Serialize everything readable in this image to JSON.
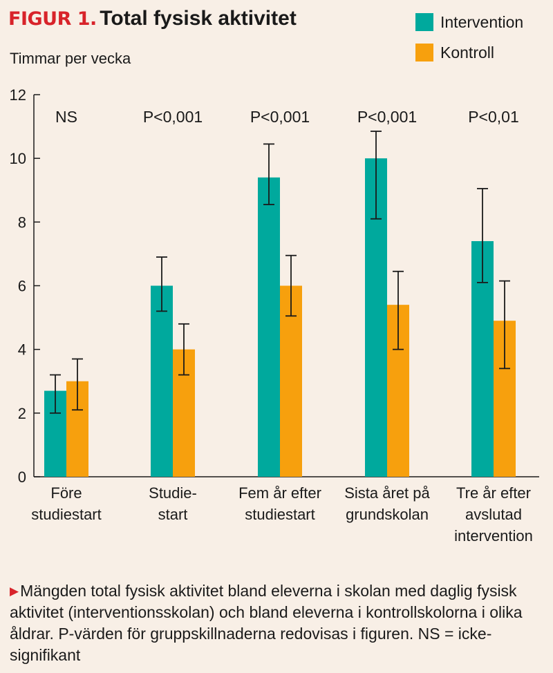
{
  "figure": {
    "label": "FIGUR 1.",
    "title": "Total fysisk aktivitet"
  },
  "caption": "Mängden total fysisk aktivitet bland eleverna i skolan med daglig fysisk aktivitet (interventionsskolan) och bland eleverna i kontrollskolorna i olika åldrar. P-värden för gruppskillnaderna redovisas i figuren. NS = icke-signifikant",
  "chart_data": {
    "type": "bar",
    "title": "Total fysisk aktivitet",
    "ylabel": "Timmar per vecka",
    "xlabel": "",
    "ylim": [
      0,
      12
    ],
    "yticks": [
      0,
      2,
      4,
      6,
      8,
      10,
      12
    ],
    "grid": false,
    "legend_position": "top-right",
    "categories": [
      [
        "Före",
        "studiestart"
      ],
      [
        "Studie-",
        "start"
      ],
      [
        "Fem år efter",
        "studiestart"
      ],
      [
        "Sista året på",
        "grundskolan"
      ],
      [
        "Tre år efter",
        "avslutad",
        "intervention"
      ]
    ],
    "p_values": [
      "NS",
      "P<0,001",
      "P<0,001",
      "P<0,001",
      "P<0,01"
    ],
    "series": [
      {
        "name": "Intervention",
        "color": "#00a99d",
        "values": [
          2.7,
          6.0,
          9.4,
          10.0,
          7.4
        ],
        "error_low": [
          2.0,
          5.2,
          8.55,
          8.1,
          6.1
        ],
        "error_high": [
          3.2,
          6.9,
          10.45,
          10.85,
          9.05
        ]
      },
      {
        "name": "Kontroll",
        "color": "#f7a00d",
        "values": [
          3.0,
          4.0,
          6.0,
          5.4,
          4.9
        ],
        "error_low": [
          2.1,
          3.2,
          5.05,
          4.0,
          3.4
        ],
        "error_high": [
          3.7,
          4.8,
          6.95,
          6.45,
          6.15
        ]
      }
    ]
  }
}
